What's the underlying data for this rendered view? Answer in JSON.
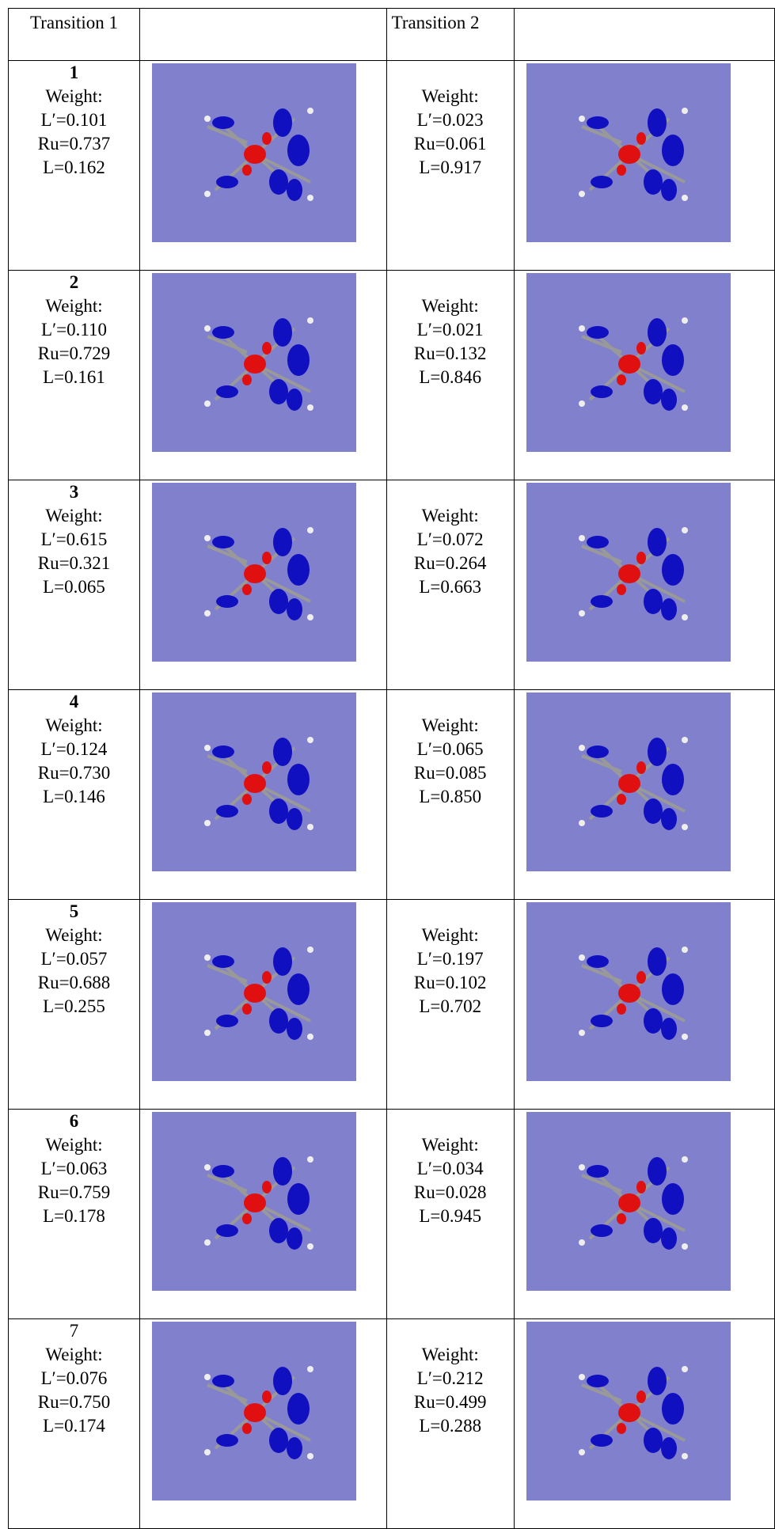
{
  "header": [
    "Transition 1",
    "Transition 2"
  ],
  "rows": [
    {
      "number": "1",
      "transition1": [
        "Weight:",
        "L′=0.101",
        "Ru=0.737",
        "L=0.162"
      ],
      "transition2": [
        "Weight:",
        "L′=0.023",
        "Ru=0.061",
        "L=0.917"
      ]
    },
    {
      "number": "2",
      "transition1": [
        "Weight:",
        "L′=0.110",
        "Ru=0.729",
        "L=0.161"
      ],
      "transition2": [
        "Weight:",
        "L′=0.021",
        "Ru=0.132",
        "L=0.846"
      ]
    },
    {
      "number": "3",
      "transition1": [
        "Weight:",
        "L′=0.615",
        "Ru=0.321",
        "L=0.065"
      ],
      "transition2": [
        "Weight:",
        "L′=0.072",
        "Ru=0.264",
        "L=0.663"
      ]
    },
    {
      "number": "4",
      "transition1": [
        "Weight:",
        "L′=0.124",
        "Ru=0.730",
        "L=0.146"
      ],
      "transition2": [
        "Weight:",
        "L′=0.065",
        "Ru=0.085",
        "L=0.850"
      ]
    },
    {
      "number": "5",
      "transition1": [
        "Weight:",
        "L′=0.057",
        "Ru=0.688",
        "L=0.255"
      ],
      "transition2": [
        "Weight:",
        "L′=0.197",
        "Ru=0.102",
        "L=0.702"
      ]
    },
    {
      "number": "6",
      "transition1": [
        "Weight:",
        "L′=0.063",
        "Ru=0.759",
        "L=0.178"
      ],
      "transition2": [
        "Weight:",
        "L′=0.034",
        "Ru=0.028",
        "L=0.945"
      ]
    },
    {
      "number": "7",
      "transition1": [
        "Weight:",
        "L′=0.076",
        "Ru=0.750",
        "L=0.174"
      ],
      "transition2": [
        "Weight:",
        "L′=0.212",
        "Ru=0.499",
        "L=0.288"
      ]
    }
  ]
}
